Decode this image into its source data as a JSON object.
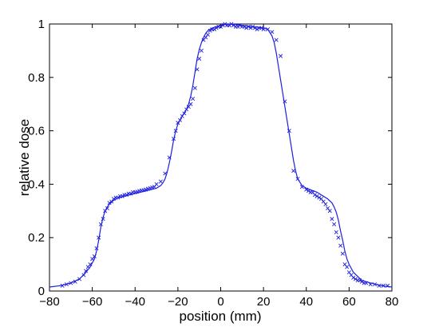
{
  "chart_data": {
    "type": "line",
    "xlabel": "position (mm)",
    "ylabel": "relative dose",
    "xlim": [
      -80,
      80
    ],
    "ylim": [
      0,
      1
    ],
    "xticks": [
      -80,
      -60,
      -40,
      -20,
      0,
      20,
      40,
      60,
      80
    ],
    "yticks": [
      0,
      0.2,
      0.4,
      0.6,
      0.8,
      1
    ],
    "xtick_labels": [
      "−80",
      "−60",
      "−40",
      "−20",
      "0",
      "20",
      "40",
      "60",
      "80"
    ],
    "ytick_labels": [
      "0",
      "0.2",
      "0.4",
      "0.6",
      "0.8",
      "1"
    ],
    "grid": false,
    "color": "#1f1fe0",
    "series": [
      {
        "style": "line",
        "x": [
          -80,
          -75,
          -70,
          -66,
          -63,
          -61,
          -59,
          -58,
          -57,
          -56,
          -55,
          -54,
          -53,
          -52,
          -50,
          -48,
          -45,
          -40,
          -35,
          -30,
          -28,
          -27,
          -26,
          -25,
          -24,
          -23,
          -22,
          -21,
          -20,
          -18,
          -16,
          -15,
          -14,
          -13,
          -12,
          -11,
          -10,
          -9,
          -8,
          -7,
          -6,
          -4,
          -2,
          0,
          2,
          5,
          10,
          15,
          20,
          22,
          24,
          25,
          26,
          27,
          28,
          29,
          30,
          31,
          32,
          33,
          34,
          35,
          36,
          38,
          40,
          45,
          48,
          50,
          52,
          53,
          54,
          55,
          56,
          57,
          58,
          59,
          60,
          61,
          62,
          64,
          66,
          70,
          75,
          80
        ],
        "y": [
          0.015,
          0.02,
          0.03,
          0.045,
          0.07,
          0.09,
          0.12,
          0.15,
          0.19,
          0.24,
          0.275,
          0.3,
          0.315,
          0.325,
          0.34,
          0.348,
          0.355,
          0.365,
          0.375,
          0.385,
          0.395,
          0.405,
          0.42,
          0.445,
          0.48,
          0.52,
          0.565,
          0.6,
          0.625,
          0.655,
          0.68,
          0.7,
          0.73,
          0.77,
          0.82,
          0.87,
          0.905,
          0.93,
          0.95,
          0.965,
          0.975,
          0.985,
          0.99,
          0.995,
          0.998,
          1.0,
          0.995,
          0.99,
          0.985,
          0.98,
          0.955,
          0.93,
          0.89,
          0.84,
          0.79,
          0.74,
          0.69,
          0.64,
          0.59,
          0.54,
          0.49,
          0.45,
          0.42,
          0.395,
          0.385,
          0.37,
          0.355,
          0.345,
          0.33,
          0.315,
          0.295,
          0.265,
          0.225,
          0.19,
          0.15,
          0.12,
          0.1,
          0.085,
          0.07,
          0.055,
          0.04,
          0.03,
          0.02,
          0.015
        ]
      },
      {
        "style": "marker",
        "marker": "x",
        "x": [
          -74,
          -72,
          -70,
          -68,
          -66,
          -64,
          -63,
          -62,
          -61,
          -60,
          -59,
          -58,
          -57,
          -56,
          -55,
          -54,
          -53,
          -52,
          -51,
          -50,
          -49,
          -48,
          -47,
          -46,
          -45,
          -44,
          -43,
          -42,
          -41,
          -40,
          -39,
          -38,
          -37,
          -36,
          -35,
          -34,
          -33,
          -32,
          -31,
          -30,
          -28,
          -26,
          -24,
          -22,
          -21,
          -20,
          -19,
          -18,
          -17,
          -16,
          -15,
          -14,
          -13,
          -12,
          -11,
          -10,
          -9,
          -8,
          -7,
          -6,
          -5,
          -4,
          -3,
          -2,
          -1,
          0,
          1,
          2,
          3,
          4,
          5,
          6,
          7,
          8,
          9,
          10,
          11,
          12,
          13,
          14,
          15,
          16,
          17,
          18,
          19,
          20,
          22,
          24,
          26,
          28,
          30,
          32,
          34,
          36,
          38,
          40,
          41,
          42,
          43,
          44,
          45,
          46,
          47,
          48,
          49,
          50,
          51,
          52,
          53,
          54,
          55,
          56,
          57,
          58,
          59,
          60,
          61,
          62,
          63,
          64,
          65,
          66,
          67,
          68,
          70,
          72,
          74,
          76,
          78
        ],
        "y": [
          0.02,
          0.025,
          0.03,
          0.035,
          0.045,
          0.06,
          0.075,
          0.09,
          0.1,
          0.12,
          0.13,
          0.16,
          0.2,
          0.25,
          0.27,
          0.3,
          0.31,
          0.33,
          0.335,
          0.345,
          0.35,
          0.35,
          0.355,
          0.355,
          0.36,
          0.36,
          0.365,
          0.365,
          0.37,
          0.37,
          0.372,
          0.375,
          0.377,
          0.378,
          0.38,
          0.383,
          0.385,
          0.388,
          0.39,
          0.4,
          0.41,
          0.44,
          0.5,
          0.57,
          0.6,
          0.63,
          0.64,
          0.655,
          0.665,
          0.68,
          0.69,
          0.7,
          0.72,
          0.76,
          0.83,
          0.87,
          0.9,
          0.94,
          0.95,
          0.96,
          0.975,
          0.98,
          0.98,
          0.985,
          0.99,
          0.99,
          0.995,
          1.0,
          0.995,
          0.995,
          1.0,
          0.995,
          0.99,
          0.99,
          0.995,
          0.99,
          0.99,
          0.985,
          0.99,
          0.985,
          0.99,
          0.985,
          0.98,
          0.985,
          0.985,
          0.98,
          0.98,
          0.97,
          0.94,
          0.88,
          0.71,
          0.6,
          0.45,
          0.42,
          0.39,
          0.38,
          0.375,
          0.37,
          0.37,
          0.36,
          0.355,
          0.35,
          0.345,
          0.335,
          0.325,
          0.31,
          0.3,
          0.27,
          0.25,
          0.22,
          0.2,
          0.17,
          0.14,
          0.1,
          0.09,
          0.07,
          0.06,
          0.05,
          0.045,
          0.04,
          0.04,
          0.035,
          0.03,
          0.03,
          0.025,
          0.025,
          0.02,
          0.02,
          0.02
        ]
      }
    ]
  }
}
